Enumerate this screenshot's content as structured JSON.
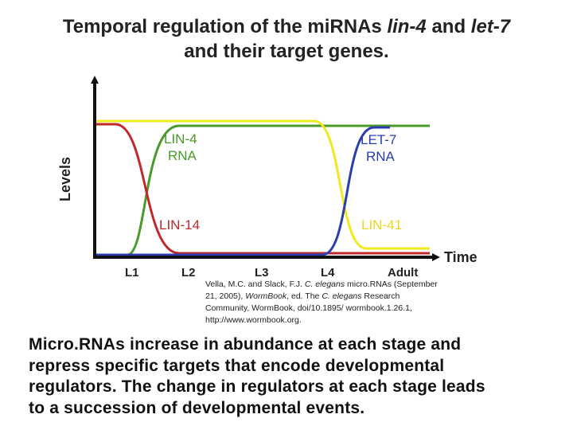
{
  "title": {
    "parts": [
      "Temporal regulation of the miRNAs ",
      "lin-4",
      " and ",
      "let-7",
      "and their target genes."
    ]
  },
  "diagram": {
    "y_label": "Levels",
    "x_label": "Time",
    "stages": [
      "L1",
      "L2",
      "L3",
      "L4",
      "Adult"
    ],
    "curve_labels": {
      "lin4": [
        "LIN-4",
        "RNA"
      ],
      "let7": [
        "LET-7",
        "RNA"
      ],
      "lin14": "LIN-14",
      "lin41": "LIN-41"
    }
  },
  "citation": [
    "Vella, M.C. and Slack, F.J. ",
    "C. elegans",
    " micro.RNAs (September 21, 2005), ",
    "WormBook",
    ", ed. The ",
    "C. elegans",
    " Research Community, WormBook, doi/10.1895/ wormbook.1.26.1, http://www.wormbook.org."
  ],
  "body": [
    "Micro.RNAs increase in abundance at each stage and",
    "repress specific targets that encode developmental",
    "regulators. The change in regulators at each stage leads",
    "to a succession of developmental events."
  ]
}
